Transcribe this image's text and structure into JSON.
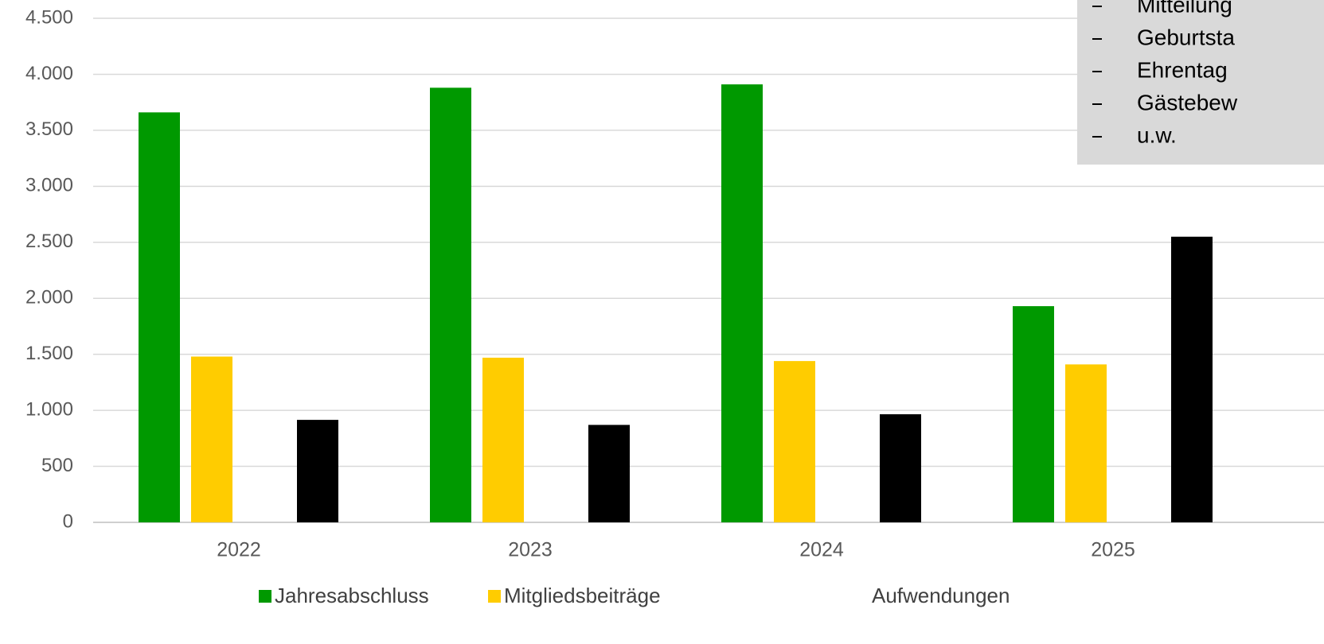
{
  "chart_data": {
    "type": "bar",
    "categories": [
      "2022",
      "2023",
      "2024",
      "2025"
    ],
    "series": [
      {
        "name": "Jahresabschluss",
        "color": "#009900",
        "values": [
          3660,
          3880,
          3910,
          1930
        ]
      },
      {
        "name": "Mitgliedsbeiträge",
        "color": "#ffcc00",
        "values": [
          1480,
          1470,
          1440,
          1410
        ]
      },
      {
        "name": "Aufwendungen",
        "color": "#000000",
        "values": [
          915,
          870,
          965,
          2550
        ]
      }
    ],
    "ylim": [
      0,
      4500
    ],
    "yticks": [
      0,
      500,
      {
        "value": 1000,
        "label": "1.000"
      },
      {
        "value": 1500,
        "label": "1.500"
      },
      {
        "value": 2000,
        "label": "2.000"
      },
      {
        "value": 2500,
        "label": "2.500"
      },
      {
        "value": 3000,
        "label": "3.000"
      },
      {
        "value": 3500,
        "label": "3.500"
      },
      {
        "value": 4000,
        "label": "4.000"
      },
      {
        "value": 4500,
        "label": "4.500"
      }
    ],
    "grid": true,
    "legend": "bottom",
    "note_items": [
      "Mitteilung",
      "Geburtsta",
      "Ehrentag",
      "Gästebew",
      "u.w."
    ]
  }
}
